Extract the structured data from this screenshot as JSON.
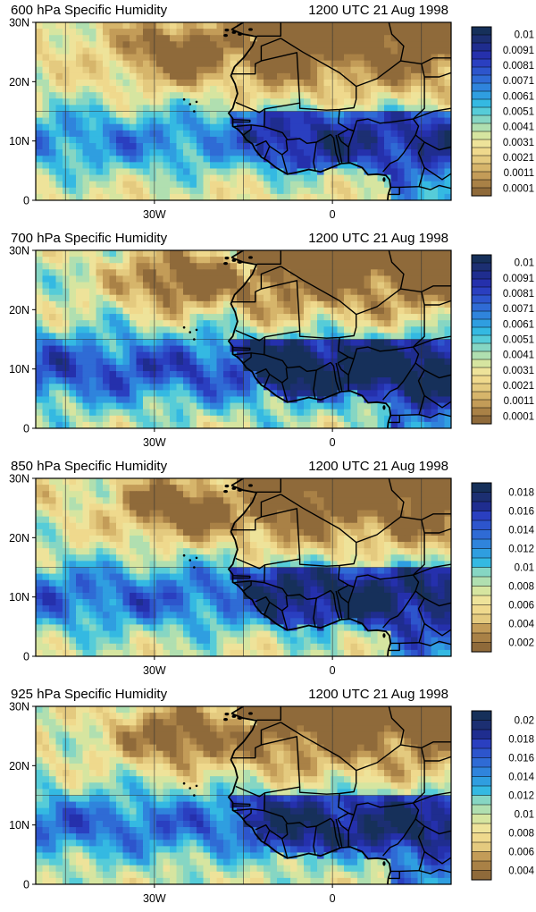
{
  "chart_data": [
    {
      "type": "heatmap",
      "title": "600 hPa Specific Humidity",
      "subtitle": "1200 UTC 21 Aug 1998",
      "x_ticks": [
        "30W",
        "0"
      ],
      "y_ticks": [
        "30N",
        "20N",
        "10N",
        "0"
      ],
      "colorbar_labels": [
        "0.01",
        "0.0091",
        "0.0081",
        "0.0071",
        "0.0061",
        "0.0051",
        "0.0041",
        "0.0031",
        "0.0021",
        "0.0011",
        "0.0001"
      ],
      "colorbar_range": [
        0.0001,
        0.0101
      ],
      "colorbar_levels": 21,
      "scale": 0.55,
      "offset": 0.0,
      "seed": 1
    },
    {
      "type": "heatmap",
      "title": "700 hPa Specific Humidity",
      "subtitle": "1200 UTC 21 Aug 1998",
      "x_ticks": [
        "30W",
        "0"
      ],
      "y_ticks": [
        "30N",
        "20N",
        "10N",
        "0"
      ],
      "colorbar_labels": [
        "0.01",
        "0.0091",
        "0.0081",
        "0.0071",
        "0.0061",
        "0.0051",
        "0.0041",
        "0.0031",
        "0.0021",
        "0.0011",
        "0.0001"
      ],
      "colorbar_range": [
        0.0001,
        0.0101
      ],
      "colorbar_levels": 21,
      "scale": 0.78,
      "offset": 0.1,
      "seed": 2
    },
    {
      "type": "heatmap",
      "title": "850 hPa Specific Humidity",
      "subtitle": "1200 UTC 21 Aug 1998",
      "x_ticks": [
        "30W",
        "0"
      ],
      "y_ticks": [
        "30N",
        "20N",
        "10N",
        "0"
      ],
      "colorbar_labels": [
        "0.018",
        "0.016",
        "0.014",
        "0.012",
        "0.01",
        "0.008",
        "0.006",
        "0.004",
        "0.002"
      ],
      "colorbar_range": [
        0.001,
        0.019
      ],
      "colorbar_levels": 18,
      "scale": 0.68,
      "offset": 0.05,
      "seed": 3
    },
    {
      "type": "heatmap",
      "title": "925 hPa Specific Humidity",
      "subtitle": "1200 UTC 21 Aug 1998",
      "x_ticks": [
        "30W",
        "0"
      ],
      "y_ticks": [
        "30N",
        "20N",
        "10N",
        "0"
      ],
      "colorbar_labels": [
        "0.02",
        "0.018",
        "0.016",
        "0.014",
        "0.012",
        "0.01",
        "0.008",
        "0.006",
        "0.004"
      ],
      "colorbar_range": [
        0.003,
        0.021
      ],
      "colorbar_levels": 18,
      "scale": 0.62,
      "offset": 0.05,
      "seed": 4
    }
  ],
  "palette": [
    "#8f6a3a",
    "#a98146",
    "#c39c58",
    "#d6b56b",
    "#e4ca7f",
    "#efd98d",
    "#eee39a",
    "#d6e5a0",
    "#b0dfb0",
    "#86d6c3",
    "#56ccd8",
    "#34b9e2",
    "#2f9ee0",
    "#2f84dc",
    "#2f6bd5",
    "#2d55cc",
    "#2a3fc0",
    "#2530ac",
    "#1f2d8f",
    "#1c2f72",
    "#16305a"
  ],
  "map": {
    "lon_range": [
      -50,
      20
    ],
    "lat_range": [
      0,
      30
    ],
    "lon_gridlines": [
      -45,
      -30,
      -15,
      0,
      15
    ],
    "lat_gridlines": [
      15
    ],
    "coastline": [
      [
        -17.0,
        28.8
      ],
      [
        -15.0,
        28.0
      ],
      [
        -12.8,
        27.6
      ],
      [
        -13.5,
        26.0
      ],
      [
        -15.0,
        24.0
      ],
      [
        -16.5,
        22.5
      ],
      [
        -17.1,
        21.0
      ],
      [
        -16.4,
        19.6
      ],
      [
        -16.0,
        18.0
      ],
      [
        -16.5,
        16.5
      ],
      [
        -16.8,
        15.5
      ],
      [
        -17.5,
        14.7
      ],
      [
        -16.8,
        13.8
      ],
      [
        -16.8,
        12.5
      ],
      [
        -16.0,
        12.0
      ],
      [
        -15.2,
        11.2
      ],
      [
        -14.5,
        10.2
      ],
      [
        -13.5,
        9.5
      ],
      [
        -13.0,
        8.5
      ],
      [
        -12.0,
        7.3
      ],
      [
        -11.0,
        6.7
      ],
      [
        -9.5,
        5.5
      ],
      [
        -7.6,
        4.4
      ],
      [
        -6.0,
        4.7
      ],
      [
        -4.0,
        5.2
      ],
      [
        -2.0,
        4.8
      ],
      [
        0.0,
        5.6
      ],
      [
        1.5,
        6.2
      ],
      [
        3.0,
        6.3
      ],
      [
        5.0,
        5.5
      ],
      [
        6.0,
        4.3
      ],
      [
        7.5,
        4.4
      ],
      [
        9.0,
        4.2
      ],
      [
        9.6,
        3.5
      ],
      [
        9.8,
        2.2
      ],
      [
        9.4,
        1.0
      ],
      [
        9.3,
        0.0
      ]
    ],
    "north_coast": [
      [
        -17.0,
        28.8
      ],
      [
        -15.0,
        30.0
      ]
    ],
    "borders": [
      [
        [
          -13.1,
          27.7
        ],
        [
          -8.7,
          27.7
        ],
        [
          -8.7,
          30.0
        ]
      ],
      [
        [
          -8.7,
          27.3
        ],
        [
          -5.0,
          25.0
        ],
        [
          1.2,
          21.5
        ],
        [
          4.0,
          19.2
        ],
        [
          7.5,
          20.5
        ],
        [
          11.5,
          23.5
        ],
        [
          15.0,
          23.0
        ]
      ],
      [
        [
          -17.0,
          21.3
        ],
        [
          -13.0,
          21.3
        ],
        [
          -13.0,
          23.0
        ],
        [
          -12.0,
          23.5
        ],
        [
          -12.0,
          26.0
        ],
        [
          -8.7,
          27.3
        ]
      ],
      [
        [
          -12.0,
          23.5
        ],
        [
          -6.0,
          24.9
        ],
        [
          -5.5,
          16.4
        ],
        [
          -11.4,
          15.4
        ],
        [
          -12.3,
          14.8
        ],
        [
          -16.3,
          16.5
        ]
      ],
      [
        [
          -11.4,
          15.4
        ],
        [
          -11.5,
          12.4
        ],
        [
          -8.4,
          11.4
        ],
        [
          -7.6,
          10.2
        ],
        [
          -5.5,
          10.4
        ],
        [
          -4.3,
          9.6
        ],
        [
          -2.7,
          9.8
        ],
        [
          -0.3,
          11.1
        ]
      ],
      [
        [
          -5.5,
          16.4
        ],
        [
          -5.5,
          15.5
        ],
        [
          -1.0,
          15.2
        ],
        [
          1.2,
          15.3
        ],
        [
          3.6,
          15.6
        ],
        [
          4.0,
          17.0
        ],
        [
          4.0,
          19.2
        ]
      ],
      [
        [
          1.2,
          15.3
        ],
        [
          1.0,
          13.0
        ],
        [
          2.7,
          12.0
        ],
        [
          3.6,
          11.7
        ],
        [
          4.1,
          13.4
        ],
        [
          6.0,
          13.7
        ],
        [
          8.0,
          13.0
        ],
        [
          10.0,
          13.2
        ],
        [
          13.6,
          13.7
        ],
        [
          15.5,
          15.5
        ],
        [
          15.5,
          20.8
        ],
        [
          15.0,
          23.0
        ]
      ],
      [
        [
          -16.7,
          13.6
        ],
        [
          -13.9,
          13.5
        ],
        [
          -13.9,
          13.2
        ],
        [
          -16.7,
          13.2
        ]
      ],
      [
        [
          -16.8,
          12.4
        ],
        [
          -13.7,
          12.7
        ],
        [
          -13.7,
          12.0
        ],
        [
          -15.0,
          11.0
        ]
      ],
      [
        [
          -13.7,
          12.7
        ],
        [
          -11.4,
          12.4
        ]
      ],
      [
        [
          -13.0,
          9.2
        ],
        [
          -11.2,
          10.0
        ],
        [
          -10.6,
          9.1
        ],
        [
          -11.5,
          6.9
        ]
      ],
      [
        [
          -10.6,
          9.1
        ],
        [
          -8.5,
          7.7
        ],
        [
          -7.6,
          4.4
        ]
      ],
      [
        [
          -8.5,
          7.7
        ],
        [
          -7.6,
          8.4
        ],
        [
          -7.8,
          10.2
        ]
      ],
      [
        [
          -2.7,
          9.8
        ],
        [
          -3.2,
          6.4
        ],
        [
          -2.9,
          5.0
        ]
      ],
      [
        [
          -0.3,
          11.1
        ],
        [
          0.2,
          10.5
        ],
        [
          0.6,
          8.0
        ],
        [
          1.2,
          6.1
        ]
      ],
      [
        [
          0.6,
          11.0
        ],
        [
          0.9,
          9.8
        ],
        [
          1.6,
          6.2
        ]
      ],
      [
        [
          0.9,
          11.0
        ],
        [
          1.5,
          9.9
        ],
        [
          2.7,
          9.0
        ],
        [
          2.7,
          6.4
        ]
      ],
      [
        [
          2.7,
          9.0
        ],
        [
          3.6,
          11.7
        ]
      ],
      [
        [
          3.6,
          11.7
        ],
        [
          2.7,
          12.0
        ],
        [
          0.9,
          11.0
        ]
      ],
      [
        [
          13.6,
          13.7
        ],
        [
          14.5,
          12.5
        ],
        [
          14.0,
          11.0
        ],
        [
          13.0,
          9.5
        ],
        [
          12.0,
          8.0
        ],
        [
          11.0,
          6.8
        ],
        [
          9.7,
          6.2
        ],
        [
          8.5,
          4.8
        ]
      ],
      [
        [
          14.0,
          11.0
        ],
        [
          15.5,
          9.8
        ],
        [
          14.5,
          8.0
        ],
        [
          15.5,
          5.5
        ],
        [
          14.6,
          2.3
        ],
        [
          11.3,
          2.2
        ],
        [
          9.8,
          2.2
        ]
      ],
      [
        [
          11.3,
          2.2
        ],
        [
          11.3,
          1.0
        ],
        [
          9.4,
          1.0
        ]
      ],
      [
        [
          13.6,
          13.7
        ],
        [
          17.0,
          15.0
        ],
        [
          20.0,
          15.5
        ]
      ],
      [
        [
          15.5,
          9.8
        ],
        [
          18.0,
          8.5
        ],
        [
          20.0,
          9.0
        ]
      ],
      [
        [
          15.5,
          5.5
        ],
        [
          18.5,
          3.5
        ],
        [
          20.0,
          4.5
        ]
      ],
      [
        [
          14.6,
          2.3
        ],
        [
          16.5,
          1.8
        ],
        [
          18.0,
          2.5
        ],
        [
          20.0,
          2.0
        ]
      ],
      [
        [
          15.5,
          20.8
        ],
        [
          18.0,
          20.8
        ],
        [
          20.0,
          21.5
        ]
      ],
      [
        [
          11.5,
          23.5
        ],
        [
          12.0,
          26.0
        ],
        [
          10.0,
          28.0
        ],
        [
          9.5,
          30.0
        ]
      ],
      [
        [
          15.0,
          23.0
        ],
        [
          17.0,
          24.0
        ],
        [
          20.0,
          24.0
        ]
      ]
    ],
    "islands": [
      [
        -24.0,
        16.2
      ],
      [
        -23.3,
        15.0
      ],
      [
        -25.0,
        17.0
      ],
      [
        -22.9,
        16.6
      ]
    ],
    "canaries": [
      [
        -15.6,
        28.0
      ],
      [
        -16.6,
        28.3
      ],
      [
        -13.8,
        28.8
      ],
      [
        -17.8,
        28.7
      ],
      [
        -18.0,
        27.8
      ]
    ],
    "bioko": [
      8.7,
      3.5
    ]
  }
}
